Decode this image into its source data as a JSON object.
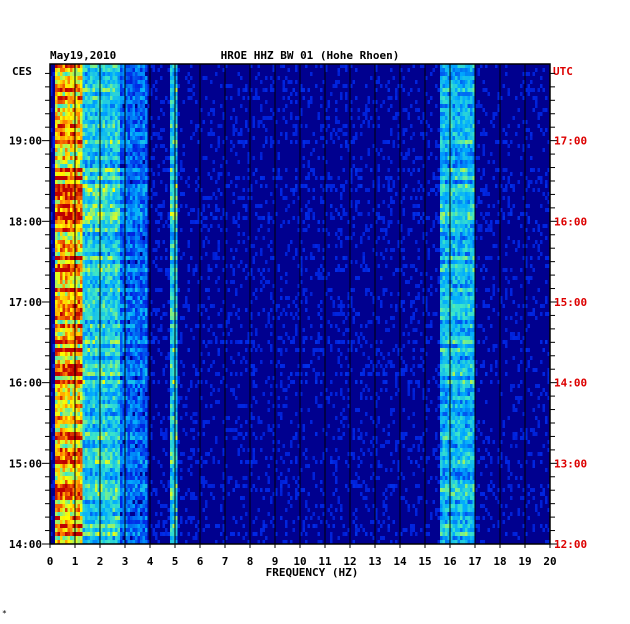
{
  "chart_data": {
    "type": "heatmap",
    "date": "May19,2010",
    "title": "HROE HHZ BW 01 (Hohe Rhoen)",
    "xlabel": "FREQUENCY (HZ)",
    "left_axis_label": "CES",
    "right_axis_label": "UTC",
    "xlim": [
      0,
      20
    ],
    "x_ticks": [
      "0",
      "1",
      "2",
      "3",
      "4",
      "5",
      "6",
      "7",
      "8",
      "9",
      "10",
      "11",
      "12",
      "13",
      "14",
      "15",
      "16",
      "17",
      "18",
      "19",
      "20"
    ],
    "left_time_ticks": [
      {
        "label": "19:00",
        "hour": 19
      },
      {
        "label": "18:00",
        "hour": 18
      },
      {
        "label": "17:00",
        "hour": 17
      },
      {
        "label": "16:00",
        "hour": 16
      },
      {
        "label": "15:00",
        "hour": 15
      },
      {
        "label": "14:00",
        "hour": 14
      }
    ],
    "right_time_ticks": [
      {
        "label": "17:00",
        "hour": 19
      },
      {
        "label": "16:00",
        "hour": 18
      },
      {
        "label": "15:00",
        "hour": 17
      },
      {
        "label": "14:00",
        "hour": 16
      },
      {
        "label": "13:00",
        "hour": 15
      },
      {
        "label": "12:00",
        "hour": 14
      }
    ],
    "time_range_ces": [
      14.0,
      19.95
    ],
    "energy_bands": [
      {
        "f_from": 0.2,
        "f_to": 1.2,
        "level": 0.85
      },
      {
        "f_from": 1.2,
        "f_to": 2.8,
        "level": 0.55
      },
      {
        "f_from": 2.8,
        "f_to": 3.8,
        "level": 0.35
      },
      {
        "f_from": 4.8,
        "f_to": 5.0,
        "level": 0.55
      },
      {
        "f_from": 15.6,
        "f_to": 16.9,
        "level": 0.5
      }
    ],
    "colors": {
      "background": "#00008f",
      "low": "#0000c0",
      "mid": "#00c8ff",
      "high": "#ffff00",
      "peak": "#c00000",
      "utc_label": "#dd0000",
      "grid": "#000000"
    }
  },
  "footer_mark": "*"
}
